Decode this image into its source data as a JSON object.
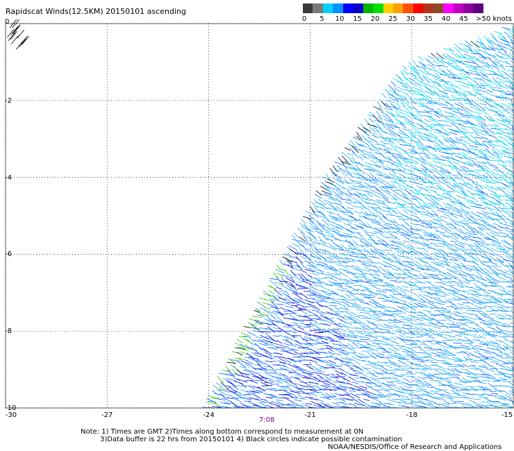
{
  "header": {
    "title": "Rapidscat Winds(12.5KM) 20150101 ascending"
  },
  "legend": {
    "colors": [
      "#3a3a3a",
      "#7a7a7a",
      "#00d2ff",
      "#0096ff",
      "#0000ff",
      "#0a00cc",
      "#00b400",
      "#00e000",
      "#ffd000",
      "#ffa000",
      "#ff5000",
      "#ff0000",
      "#b4321e",
      "#8c4a28",
      "#ff00ff",
      "#c000c0",
      "#9000a0",
      "#600080"
    ],
    "labels": [
      "0",
      "5",
      "10",
      "15",
      "20",
      "25",
      "30",
      "35",
      "40",
      "45",
      ">50 knots"
    ]
  },
  "axes": {
    "x_labels": [
      "-30",
      "-27",
      "-24",
      "-21",
      "-18",
      "-15"
    ],
    "y_labels": [
      "0",
      "-2",
      "-4",
      "-6",
      "-8",
      "-10"
    ]
  },
  "time_label": "7:08",
  "notes": [
    "Note: 1) Times are GMT 2)Times along bottom correspond to measurement at 0N",
    "3)Data buffer is 22 hrs from 20150101 4) Black circles indicate possible contamination",
    "NOAA/NESDIS/Office of Research and Applications"
  ],
  "chart_data": {
    "type": "map",
    "title": "Rapidscat Winds(12.5KM) 20150101 ascending",
    "xlim": [
      -30,
      -15
    ],
    "ylim": [
      -10,
      0
    ],
    "x_ticks": [
      -30,
      -27,
      -24,
      -21,
      -18,
      -15
    ],
    "y_ticks": [
      0,
      -2,
      -4,
      -6,
      -8,
      -10
    ],
    "grid": true,
    "swath_boundary": [
      [
        -24.2,
        -10
      ],
      [
        -20.6,
        -4
      ],
      [
        -18.2,
        -1
      ],
      [
        -15,
        0
      ]
    ],
    "color_scale_knots": [
      0,
      5,
      10,
      15,
      20,
      25,
      30,
      35,
      40,
      45,
      50
    ]
  }
}
